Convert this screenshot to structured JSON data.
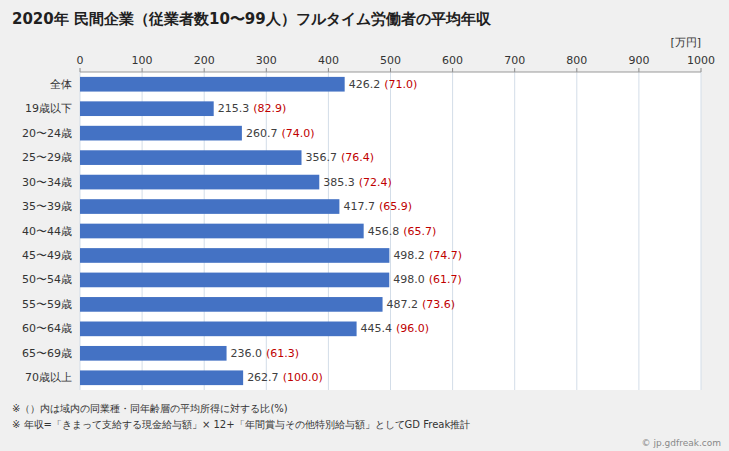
{
  "chart_data": {
    "type": "bar",
    "orientation": "horizontal",
    "title": "2020年 民間企業（従業者数10〜99人）フルタイム労働者の平均年収",
    "categories": [
      "全体",
      "19歳以下",
      "20〜24歳",
      "25〜29歳",
      "30〜34歳",
      "35〜39歳",
      "40〜44歳",
      "45〜49歳",
      "50〜54歳",
      "55〜59歳",
      "60〜64歳",
      "65〜69歳",
      "70歳以上"
    ],
    "values": [
      426.2,
      215.3,
      260.7,
      356.7,
      385.3,
      417.7,
      456.8,
      498.2,
      498.0,
      487.2,
      445.4,
      236.0,
      262.7
    ],
    "value_labels": [
      "426.2",
      "215.3",
      "260.7",
      "356.7",
      "385.3",
      "417.7",
      "456.8",
      "498.2",
      "498.0",
      "487.2",
      "445.4",
      "236.0",
      "262.7"
    ],
    "percentages": [
      71.0,
      82.9,
      74.0,
      76.4,
      72.4,
      65.9,
      65.7,
      74.7,
      61.7,
      73.6,
      96.0,
      61.3,
      100.0
    ],
    "percentage_labels": [
      "(71.0)",
      "(82.9)",
      "(74.0)",
      "(76.4)",
      "(72.4)",
      "(65.9)",
      "(65.7)",
      "(74.7)",
      "(61.7)",
      "(73.6)",
      "(96.0)",
      "(61.3)",
      "(100.0)"
    ],
    "percentage_color": "#C00000",
    "color": "#4472C4",
    "data_labels": true,
    "xlabel": "[万円]",
    "xlim": [
      0,
      1000
    ],
    "xticks": [
      0,
      100,
      200,
      300,
      400,
      500,
      600,
      700,
      800,
      900,
      1000
    ],
    "grid": true,
    "notes": [
      "※（）内は域内の同業種・同年齢層の平均所得に対する比(%)",
      "※ 年収=「きまって支給する現金給与額」× 12+「年間賞与その他特別給与額」としてGD Freak推計"
    ],
    "watermark": "© jp.gdfreak.com"
  }
}
